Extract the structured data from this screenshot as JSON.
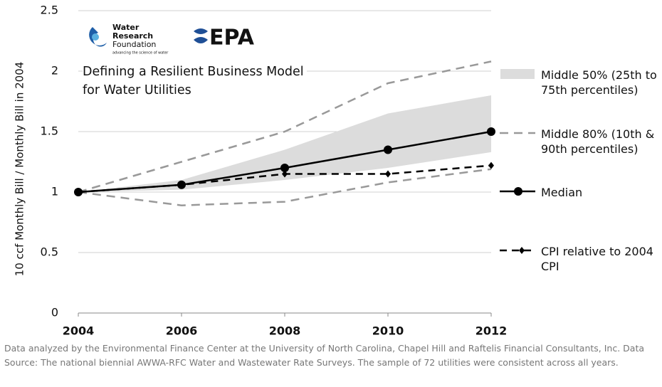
{
  "chart_data": {
    "type": "line",
    "title": [
      "Defining a Resilient Business Model",
      "for Water Utilities"
    ],
    "logo": {
      "wrf": [
        "Water",
        "Research",
        "Foundation"
      ],
      "wrf_tagline": "advancing the science of water",
      "epa": "EPA"
    },
    "ylabel": "10 ccf Monthly Bill / Monthly Bill in 2004",
    "x": [
      2004,
      2006,
      2008,
      2010,
      2012
    ],
    "xlim": [
      2004,
      2012
    ],
    "xticks": [
      2004,
      2006,
      2008,
      2010,
      2012
    ],
    "ylim": [
      0,
      2.5
    ],
    "yticks": [
      0,
      0.5,
      1,
      1.5,
      2,
      2.5
    ],
    "grid": true,
    "series": [
      {
        "name": "Middle 50% (25th to 75th percentiles)",
        "color": "#dcdcdc",
        "style": "band",
        "high": [
          1,
          1.1,
          1.35,
          1.65,
          1.8
        ],
        "low": [
          1,
          1.02,
          1.1,
          1.2,
          1.33
        ]
      },
      {
        "name": "Middle 80% (10th & 90th percentiles)",
        "color": "#999999",
        "style": "dashed-band",
        "high": [
          1,
          1.25,
          1.5,
          1.9,
          2.08
        ],
        "low": [
          1,
          0.89,
          0.92,
          1.08,
          1.19
        ]
      },
      {
        "name": "Median",
        "color": "#000000",
        "style": "solid",
        "marker": "circle",
        "values": [
          1,
          1.06,
          1.2,
          1.35,
          1.5
        ]
      },
      {
        "name": "CPI relative to 2004 CPI",
        "color": "#000000",
        "style": "dashed",
        "marker": "diamond",
        "values": [
          1,
          1.06,
          1.15,
          1.15,
          1.22
        ]
      }
    ],
    "note": "Data analyzed by the Environmental Finance Center at the University of North Carolina, Chapel Hill and Raftelis Financial Consultants, Inc. Data Source: The national biennial AWWA-RFC Water and Wastewater Rate Surveys. The sample of 72 utilities were consistent across all years."
  }
}
